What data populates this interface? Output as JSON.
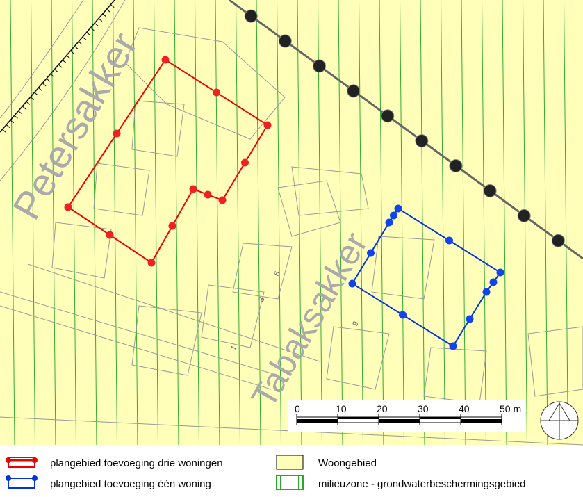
{
  "map": {
    "street_names": [
      "Petersakker",
      "Tabaksakker"
    ],
    "house_numbers": [
      "1",
      "3",
      "5",
      "9"
    ],
    "scale_bar": {
      "labels": [
        "0",
        "10",
        "20",
        "30",
        "40",
        "50 m"
      ]
    }
  },
  "legend": {
    "items": [
      "plangebied toevoeging drie woningen",
      "plangebied toevoeging één woning",
      "Woongebied",
      "milieuzone - grondwaterbeschermingsgebied"
    ]
  }
}
